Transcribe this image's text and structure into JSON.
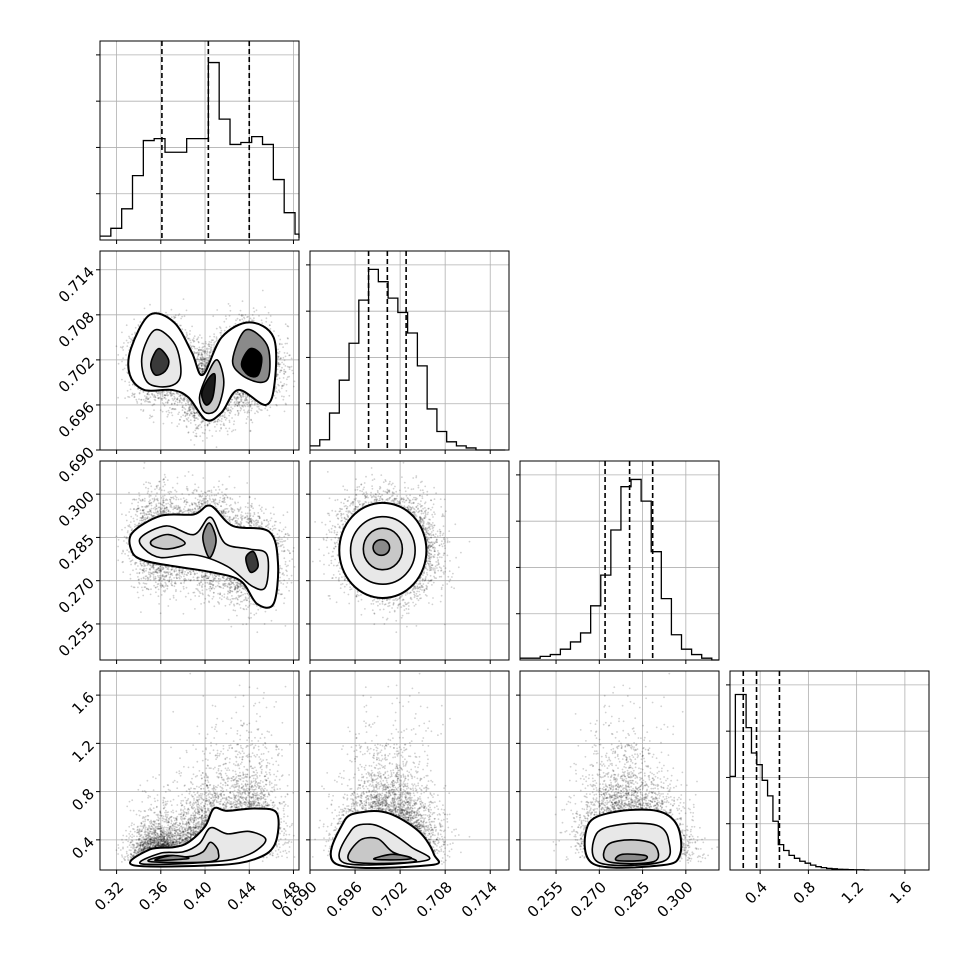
{
  "chart_data": {
    "type": "corner",
    "parameters": [
      {
        "range": [
          0.305,
          0.485
        ],
        "ticks": [
          "0.32",
          "0.36",
          "0.40",
          "0.44",
          "0.48"
        ],
        "tick_values": [
          0.32,
          0.36,
          0.4,
          0.44,
          0.48
        ],
        "quantiles": [
          0.361,
          0.403,
          0.44
        ]
      },
      {
        "range": [
          0.69,
          0.7165
        ],
        "ticks": [
          "0.690",
          "0.696",
          "0.702",
          "0.708",
          "0.714"
        ],
        "tick_values": [
          0.69,
          0.696,
          0.702,
          0.708,
          0.714
        ],
        "quantiles": [
          0.6978,
          0.7003,
          0.7028
        ]
      },
      {
        "range": [
          0.2425,
          0.3115
        ],
        "ticks": [
          "0.255",
          "0.270",
          "0.285",
          "0.300"
        ],
        "tick_values": [
          0.255,
          0.27,
          0.285,
          0.3
        ],
        "quantiles": [
          0.272,
          0.2805,
          0.2885
        ]
      },
      {
        "range": [
          0.15,
          1.8
        ],
        "ticks": [
          "0.4",
          "0.8",
          "1.2",
          "1.6"
        ],
        "tick_values": [
          0.4,
          0.8,
          1.2,
          1.6
        ],
        "quantiles": [
          0.26,
          0.37,
          0.56
        ]
      }
    ],
    "diagonal_histograms": [
      {
        "bins": [
          0.305,
          0.3148,
          0.3246,
          0.3344,
          0.3442,
          0.354,
          0.3638,
          0.3736,
          0.3834,
          0.3932,
          0.403,
          0.4128,
          0.4226,
          0.4324,
          0.4422,
          0.452,
          0.4618,
          0.4716,
          0.4814,
          0.4912
        ],
        "counts": [
          0.02,
          0.06,
          0.16,
          0.33,
          0.51,
          0.52,
          0.45,
          0.45,
          0.52,
          0.52,
          0.91,
          0.62,
          0.49,
          0.5,
          0.53,
          0.49,
          0.31,
          0.14,
          0.03,
          0.01
        ],
        "ymax": 1.0
      },
      {
        "bins": [
          0.69,
          0.6913,
          0.6926,
          0.6939,
          0.6952,
          0.6965,
          0.6978,
          0.6991,
          0.7004,
          0.7017,
          0.703,
          0.7043,
          0.7056,
          0.7069,
          0.7082,
          0.7095,
          0.7108,
          0.7121,
          0.7134,
          0.7147,
          0.716
        ],
        "counts": [
          0.02,
          0.05,
          0.18,
          0.34,
          0.52,
          0.73,
          0.88,
          0.82,
          0.74,
          0.67,
          0.57,
          0.41,
          0.2,
          0.09,
          0.04,
          0.02,
          0.01,
          0.0,
          0.0,
          0.0
        ],
        "ymax": 0.95
      },
      {
        "bins": [
          0.2425,
          0.246,
          0.2495,
          0.253,
          0.2565,
          0.26,
          0.2635,
          0.267,
          0.2705,
          0.274,
          0.2775,
          0.281,
          0.2845,
          0.288,
          0.2915,
          0.295,
          0.2985,
          0.302,
          0.3055,
          0.309,
          0.3115
        ],
        "counts": [
          0.01,
          0.01,
          0.02,
          0.03,
          0.06,
          0.1,
          0.15,
          0.3,
          0.47,
          0.72,
          0.96,
          1.0,
          0.88,
          0.6,
          0.34,
          0.14,
          0.06,
          0.03,
          0.01,
          0.0
        ],
        "ymax": 1.08
      },
      {
        "bins": [
          0.15,
          0.1945,
          0.239,
          0.2835,
          0.328,
          0.3725,
          0.417,
          0.4615,
          0.506,
          0.5505,
          0.595,
          0.6395,
          0.684,
          0.7285,
          0.773,
          0.8175,
          0.862,
          0.9065,
          0.951,
          0.9955,
          1.04,
          1.0845,
          1.129,
          1.1735,
          1.218,
          1.2625,
          1.307
        ],
        "counts": [
          0.48,
          0.9,
          0.9,
          0.73,
          0.6,
          0.54,
          0.46,
          0.38,
          0.25,
          0.13,
          0.1,
          0.075,
          0.06,
          0.045,
          0.035,
          0.025,
          0.017,
          0.012,
          0.008,
          0.006,
          0.004,
          0.003,
          0.002,
          0.001,
          0.001,
          0.0
        ],
        "ymax": 1.0
      }
    ],
    "modes": {
      "m0": [
        0.361,
        0.403,
        0.44
      ],
      "m1_by_m0": [
        0.7015,
        0.6985,
        0.7013
      ],
      "m2_by_m0": [
        0.284,
        0.2838,
        0.2775
      ],
      "m3_by_m0": [
        0.26,
        0.37,
        0.48
      ]
    },
    "contour_levels": 4,
    "xlabel": "",
    "ylabel": "",
    "title": "",
    "grid": true
  }
}
